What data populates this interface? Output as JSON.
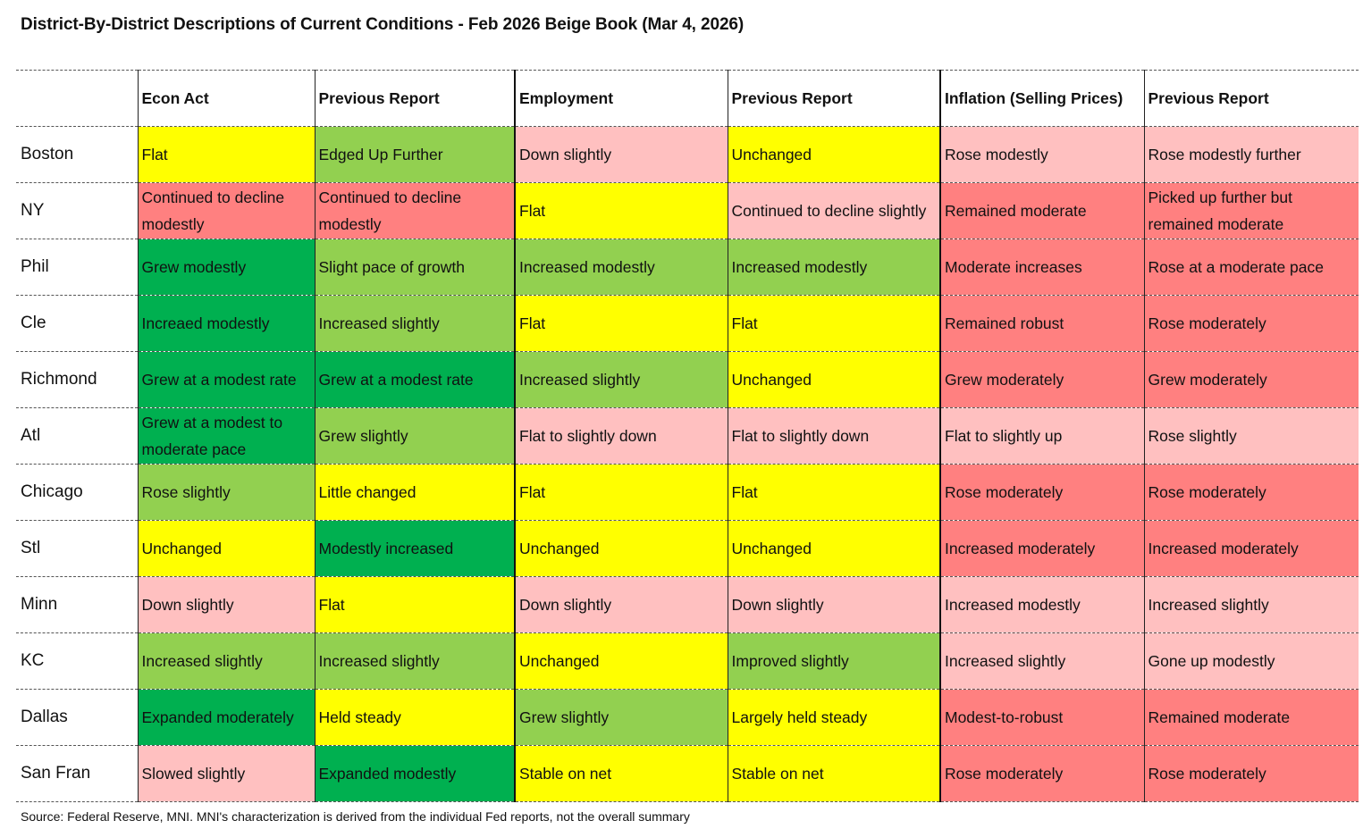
{
  "title": "District-By-District Descriptions of Current Conditions - Feb 2026 Beige Book (Mar 4, 2026)",
  "headers": [
    "",
    "Econ Act",
    "Previous Report",
    "Employment",
    "Previous Report",
    "Inflation (Selling Prices)",
    "Previous Report"
  ],
  "colors": {
    "dark_green": "#00b050",
    "light_green": "#92d050",
    "yellow": "#ffff00",
    "pink": "#ffc0c0",
    "red": "#ff8080"
  },
  "rows": [
    {
      "district": "Boston",
      "cells": [
        {
          "text": "Flat",
          "color": "yellow"
        },
        {
          "text": "Edged Up Further",
          "color": "light_green"
        },
        {
          "text": "Down slightly",
          "color": "pink"
        },
        {
          "text": "Unchanged",
          "color": "yellow"
        },
        {
          "text": "Rose modestly",
          "color": "pink"
        },
        {
          "text": "Rose modestly further",
          "color": "pink"
        }
      ]
    },
    {
      "district": "NY",
      "cells": [
        {
          "text": "Continued to decline modestly",
          "color": "red"
        },
        {
          "text": "Continued to decline modestly",
          "color": "red"
        },
        {
          "text": "Flat",
          "color": "yellow"
        },
        {
          "text": "Continued to decline slightly",
          "color": "pink"
        },
        {
          "text": "Remained moderate",
          "color": "red"
        },
        {
          "text": "Picked up further but remained moderate",
          "color": "red"
        }
      ]
    },
    {
      "district": "Phil",
      "cells": [
        {
          "text": "Grew modestly",
          "color": "dark_green"
        },
        {
          "text": "Slight pace of growth",
          "color": "light_green"
        },
        {
          "text": "Increased modestly",
          "color": "light_green"
        },
        {
          "text": "Increased modestly",
          "color": "light_green"
        },
        {
          "text": "Moderate increases",
          "color": "red"
        },
        {
          "text": "Rose at a moderate pace",
          "color": "red"
        }
      ]
    },
    {
      "district": "Cle",
      "cells": [
        {
          "text": "Increaed modestly",
          "color": "dark_green"
        },
        {
          "text": "Increased slightly",
          "color": "light_green"
        },
        {
          "text": "Flat",
          "color": "yellow"
        },
        {
          "text": "Flat",
          "color": "yellow"
        },
        {
          "text": "Remained robust",
          "color": "red"
        },
        {
          "text": "Rose moderately",
          "color": "red"
        }
      ]
    },
    {
      "district": "Richmond",
      "cells": [
        {
          "text": "Grew at a modest rate",
          "color": "dark_green"
        },
        {
          "text": "Grew at a modest rate",
          "color": "dark_green"
        },
        {
          "text": "Increased slightly",
          "color": "light_green"
        },
        {
          "text": "Unchanged",
          "color": "yellow"
        },
        {
          "text": "Grew moderately",
          "color": "red"
        },
        {
          "text": "Grew moderately",
          "color": "red"
        }
      ]
    },
    {
      "district": "Atl",
      "cells": [
        {
          "text": "Grew at a modest to moderate pace",
          "color": "dark_green"
        },
        {
          "text": "Grew slightly",
          "color": "light_green"
        },
        {
          "text": "Flat to slightly down",
          "color": "pink"
        },
        {
          "text": "Flat to slightly down",
          "color": "pink"
        },
        {
          "text": "Flat to slightly up",
          "color": "pink"
        },
        {
          "text": "Rose slightly",
          "color": "pink"
        }
      ]
    },
    {
      "district": "Chicago",
      "cells": [
        {
          "text": "Rose slightly",
          "color": "light_green"
        },
        {
          "text": "Little changed",
          "color": "yellow"
        },
        {
          "text": "Flat",
          "color": "yellow"
        },
        {
          "text": "Flat",
          "color": "yellow"
        },
        {
          "text": "Rose moderately",
          "color": "red"
        },
        {
          "text": "Rose moderately",
          "color": "red"
        }
      ]
    },
    {
      "district": "Stl",
      "cells": [
        {
          "text": "Unchanged",
          "color": "yellow"
        },
        {
          "text": "Modestly increased",
          "color": "dark_green"
        },
        {
          "text": "Unchanged",
          "color": "yellow"
        },
        {
          "text": "Unchanged",
          "color": "yellow"
        },
        {
          "text": "Increased moderately",
          "color": "red"
        },
        {
          "text": "Increased moderately",
          "color": "red"
        }
      ]
    },
    {
      "district": "Minn",
      "cells": [
        {
          "text": "Down slightly",
          "color": "pink"
        },
        {
          "text": "Flat",
          "color": "yellow"
        },
        {
          "text": "Down slightly",
          "color": "pink"
        },
        {
          "text": "Down slightly",
          "color": "pink"
        },
        {
          "text": "Increased modestly",
          "color": "pink"
        },
        {
          "text": "Increased slightly",
          "color": "pink"
        }
      ]
    },
    {
      "district": "KC",
      "cells": [
        {
          "text": "Increased slightly",
          "color": "light_green"
        },
        {
          "text": "Increased slightly",
          "color": "light_green"
        },
        {
          "text": "Unchanged",
          "color": "yellow"
        },
        {
          "text": "Improved slightly",
          "color": "light_green"
        },
        {
          "text": "Increased slightly",
          "color": "pink"
        },
        {
          "text": "Gone up modestly",
          "color": "pink"
        }
      ]
    },
    {
      "district": "Dallas",
      "cells": [
        {
          "text": "Expanded moderately",
          "color": "dark_green"
        },
        {
          "text": "Held steady",
          "color": "yellow"
        },
        {
          "text": "Grew slightly",
          "color": "light_green"
        },
        {
          "text": "Largely held steady",
          "color": "yellow"
        },
        {
          "text": "Modest-to-robust",
          "color": "red"
        },
        {
          "text": "Remained moderate",
          "color": "red"
        }
      ]
    },
    {
      "district": "San Fran",
      "cells": [
        {
          "text": "Slowed slightly",
          "color": "pink"
        },
        {
          "text": "Expanded modestly",
          "color": "dark_green"
        },
        {
          "text": "Stable on net",
          "color": "yellow"
        },
        {
          "text": "Stable on net",
          "color": "yellow"
        },
        {
          "text": "Rose moderately",
          "color": "red"
        },
        {
          "text": "Rose moderately",
          "color": "red"
        }
      ]
    }
  ],
  "source": "Source: Federal Reserve, MNI. MNI's characterization is derived from the individual Fed reports, not the overall summary"
}
